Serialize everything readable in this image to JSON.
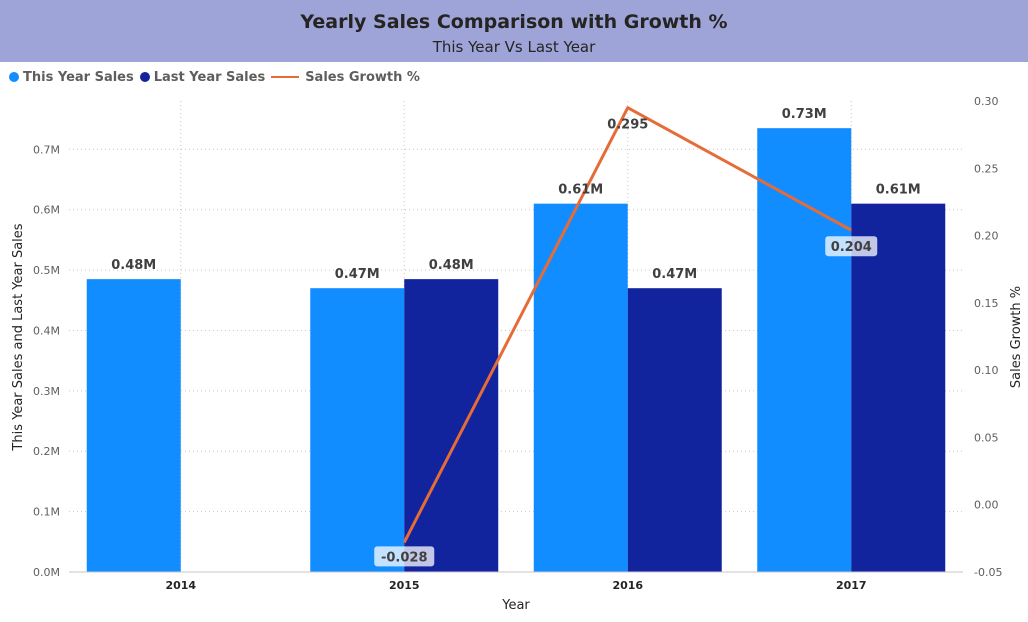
{
  "header": {
    "title": "Yearly Sales Comparison with Growth %",
    "subtitle": "This Year Vs Last Year"
  },
  "colors": {
    "this_year": "#118dff",
    "last_year": "#12239e",
    "growth": "#e66c37",
    "header_bg": "#9fa4d8"
  },
  "legend": [
    {
      "label": "This Year Sales",
      "marker": "dot",
      "color": "#118dff"
    },
    {
      "label": "Last Year Sales",
      "marker": "dot",
      "color": "#12239e"
    },
    {
      "label": "Sales Growth %",
      "marker": "line",
      "color": "#e66c37"
    }
  ],
  "chart_data": {
    "type": "bar",
    "combo_line": true,
    "categories": [
      "2014",
      "2015",
      "2016",
      "2017"
    ],
    "series": [
      {
        "name": "This Year Sales",
        "axis": "left",
        "values": [
          0.485,
          0.47,
          0.61,
          0.735
        ],
        "labels": [
          "0.48M",
          "0.47M",
          "0.61M",
          "0.73M"
        ]
      },
      {
        "name": "Last Year Sales",
        "axis": "left",
        "values": [
          null,
          0.485,
          0.47,
          0.61
        ],
        "labels": [
          null,
          "0.48M",
          "0.47M",
          "0.61M"
        ]
      },
      {
        "name": "Sales Growth %",
        "axis": "right",
        "type": "line",
        "values": [
          null,
          -0.028,
          0.295,
          0.204
        ],
        "labels": [
          null,
          "-0.028",
          "0.295",
          "0.204"
        ]
      }
    ],
    "xlabel": "Year",
    "ylabel": "This Year Sales and Last Year Sales",
    "y2label": "Sales Growth %",
    "ylim": [
      0,
      0.78
    ],
    "y2lim": [
      -0.05,
      0.3
    ],
    "yticks": [
      0,
      0.1,
      0.2,
      0.3,
      0.4,
      0.5,
      0.6,
      0.7
    ],
    "ytick_labels": [
      "0.0M",
      "0.1M",
      "0.2M",
      "0.3M",
      "0.4M",
      "0.5M",
      "0.6M",
      "0.7M"
    ],
    "y2ticks": [
      -0.05,
      0.0,
      0.05,
      0.1,
      0.15,
      0.2,
      0.25,
      0.3
    ],
    "y2tick_labels": [
      "-0.05",
      "0.00",
      "0.05",
      "0.10",
      "0.15",
      "0.20",
      "0.25",
      "0.30"
    ],
    "grid": true,
    "legend_position": "top-left"
  }
}
